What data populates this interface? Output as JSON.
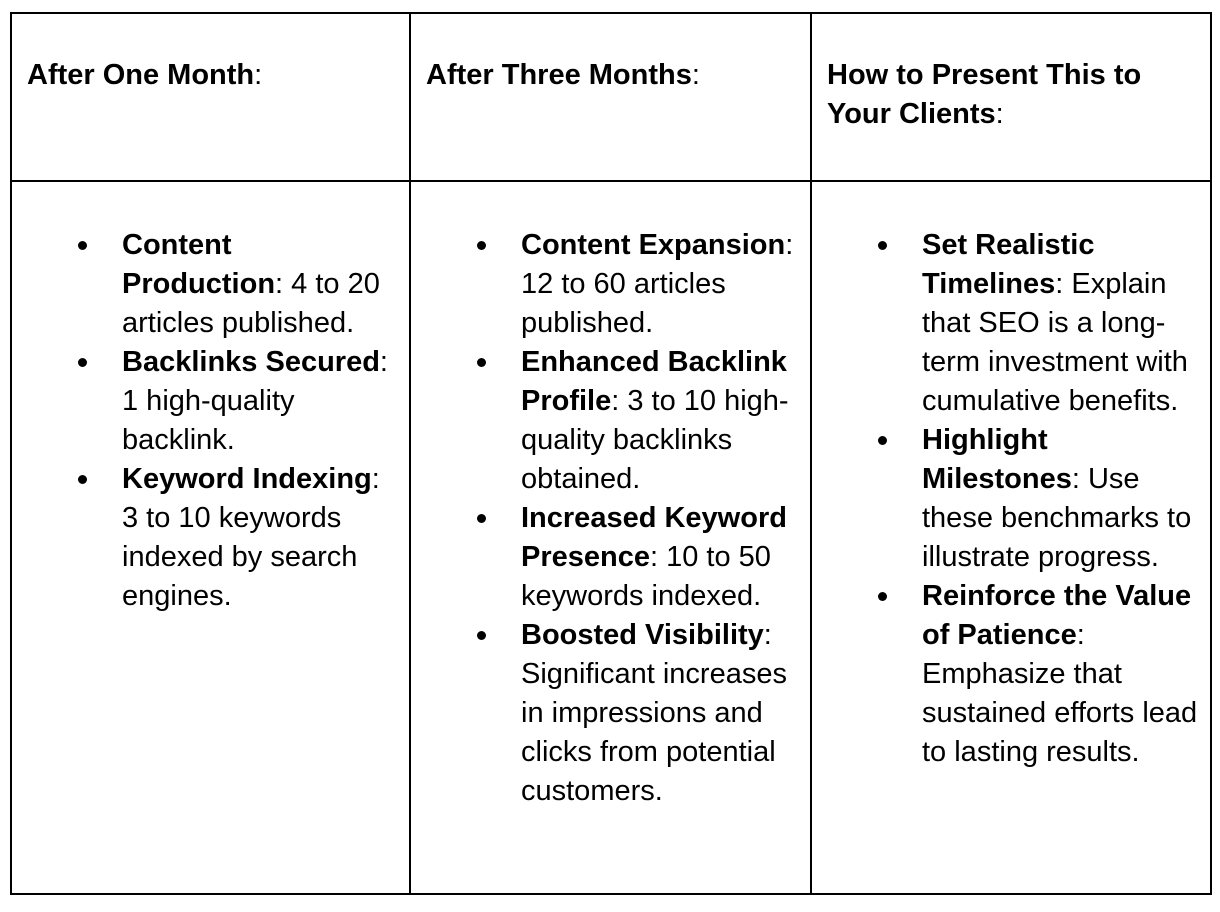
{
  "colors": {
    "text": "#000000",
    "border": "#000000",
    "background": "#ffffff"
  },
  "table": {
    "columns": [
      {
        "header": {
          "title": "After One Month",
          "suffix": ":"
        },
        "items": [
          {
            "term": "Content Production",
            "rest": ": 4 to 20 articles published."
          },
          {
            "term": "Backlinks Secured",
            "rest": ": 1 high-quality backlink."
          },
          {
            "term": "Keyword Indexing",
            "rest": ": 3 to 10 keywords indexed by search engines."
          }
        ]
      },
      {
        "header": {
          "title": "After Three Months",
          "suffix": ":"
        },
        "items": [
          {
            "term": "Content Expansion",
            "rest": ": 12 to 60 articles published."
          },
          {
            "term": "Enhanced Backlink Profile",
            "rest": ": 3 to 10 high-quality backlinks obtained."
          },
          {
            "term": "Increased Keyword Presence",
            "rest": ": 10 to 50 keywords indexed."
          },
          {
            "term": "Boosted Visibility",
            "rest": ": Significant increases in impressions and clicks from potential customers."
          }
        ]
      },
      {
        "header": {
          "title": "How to Present This to Your Clients",
          "suffix": ":"
        },
        "items": [
          {
            "term": "Set Realistic Timelines",
            "rest": ": Explain that SEO is a long-term investment with cumulative benefits."
          },
          {
            "term": "Highlight Milestones",
            "rest": ": Use these benchmarks to illustrate progress."
          },
          {
            "term": "Reinforce the Value of Patience",
            "rest": ": Emphasize that sustained efforts lead to lasting results."
          }
        ]
      }
    ]
  }
}
